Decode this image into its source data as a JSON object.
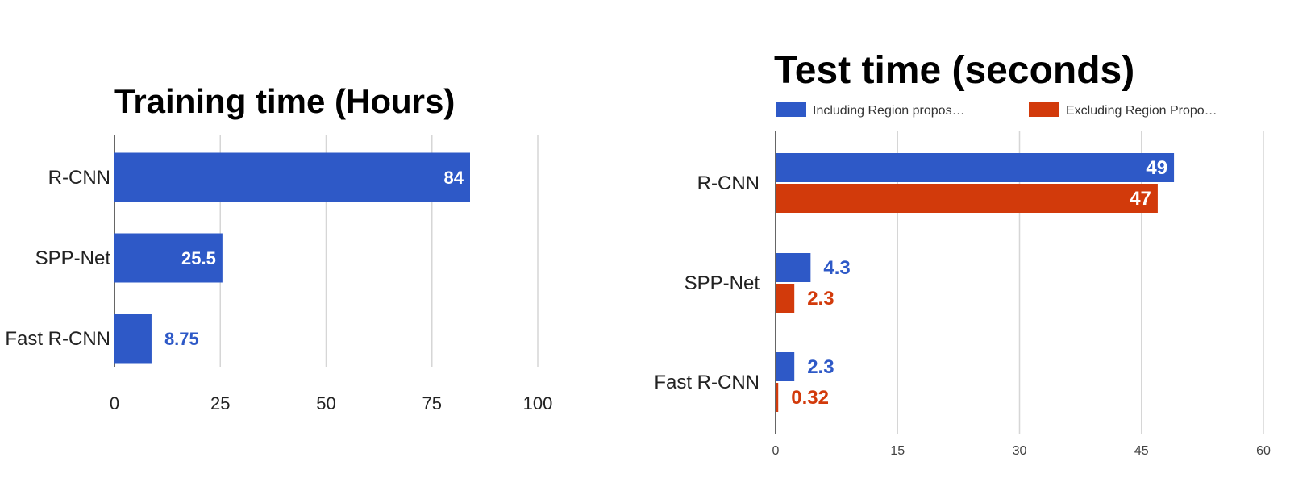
{
  "chart_data": [
    {
      "type": "bar",
      "orientation": "horizontal",
      "title": "Training time (Hours)",
      "categories": [
        "R-CNN",
        "SPP-Net",
        "Fast R-CNN"
      ],
      "values": [
        84,
        25.5,
        8.75
      ],
      "value_labels": [
        "84",
        "25.5",
        "8.75"
      ],
      "xlim": [
        0,
        100
      ],
      "xticks": [
        0,
        25,
        50,
        75,
        100
      ],
      "grid": true,
      "colors": {
        "bar": "#2e59c7"
      }
    },
    {
      "type": "bar",
      "orientation": "horizontal",
      "title": "Test time (seconds)",
      "categories": [
        "R-CNN",
        "SPP-Net",
        "Fast R-CNN"
      ],
      "series": [
        {
          "name": "Including Region propos…",
          "values": [
            49,
            4.3,
            2.3
          ],
          "value_labels": [
            "49",
            "4.3",
            "2.3"
          ],
          "color": "#2e59c7"
        },
        {
          "name": "Excluding Region Propo…",
          "values": [
            47,
            2.3,
            0.32
          ],
          "value_labels": [
            "47",
            "2.3",
            "0.32"
          ],
          "color": "#d23a0b"
        }
      ],
      "xlim": [
        0,
        60
      ],
      "xticks": [
        0,
        15,
        30,
        45,
        60
      ],
      "grid": true,
      "legend": "top"
    }
  ]
}
